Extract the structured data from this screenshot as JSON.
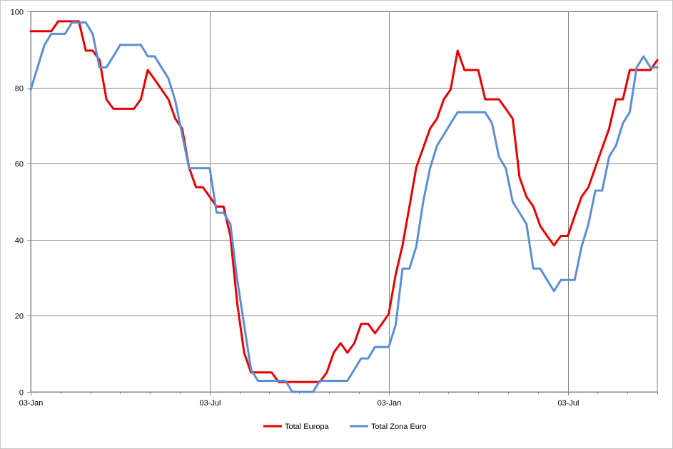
{
  "chart_data": {
    "type": "line",
    "title": "",
    "xlabel": "",
    "ylabel": "",
    "ylim": [
      0,
      100
    ],
    "yticks": [
      0,
      20,
      40,
      60,
      80,
      100
    ],
    "x_tick_labels": [
      "03-Jan",
      "03-Jul",
      "03-Jan",
      "03-Jul"
    ],
    "x_ticks_week": [
      0,
      26,
      52,
      78
    ],
    "x_range_weeks": [
      0,
      91
    ],
    "grid": true,
    "legend_position": "bottom",
    "x_unit": "weeks since 03-Jan",
    "series": [
      {
        "name": "Total Europa",
        "color": "#e40000",
        "points": [
          [
            0,
            94.8
          ],
          [
            1,
            94.8
          ],
          [
            2,
            94.8
          ],
          [
            3,
            94.8
          ],
          [
            4,
            97.4
          ],
          [
            5,
            97.4
          ],
          [
            6,
            97.4
          ],
          [
            7,
            97.4
          ],
          [
            8,
            89.7
          ],
          [
            9,
            89.7
          ],
          [
            10,
            87.2
          ],
          [
            11,
            76.9
          ],
          [
            12,
            74.4
          ],
          [
            13,
            74.4
          ],
          [
            14,
            74.4
          ],
          [
            15,
            74.4
          ],
          [
            16,
            76.9
          ],
          [
            17,
            84.6
          ],
          [
            18,
            82.1
          ],
          [
            19,
            79.5
          ],
          [
            20,
            76.9
          ],
          [
            21,
            71.8
          ],
          [
            22,
            69.2
          ],
          [
            23,
            59.0
          ],
          [
            24,
            53.8
          ],
          [
            25,
            53.8
          ],
          [
            26,
            51.3
          ],
          [
            27,
            48.7
          ],
          [
            28,
            48.7
          ],
          [
            29,
            41.0
          ],
          [
            30,
            23.1
          ],
          [
            31,
            10.3
          ],
          [
            32,
            5.1
          ],
          [
            33,
            5.1
          ],
          [
            34,
            5.1
          ],
          [
            35,
            5.1
          ],
          [
            36,
            2.6
          ],
          [
            37,
            2.6
          ],
          [
            38,
            2.6
          ],
          [
            39,
            2.6
          ],
          [
            40,
            2.6
          ],
          [
            41,
            2.6
          ],
          [
            42,
            2.6
          ],
          [
            43,
            5.1
          ],
          [
            44,
            10.3
          ],
          [
            45,
            12.8
          ],
          [
            46,
            10.3
          ],
          [
            47,
            12.8
          ],
          [
            48,
            17.9
          ],
          [
            49,
            17.9
          ],
          [
            50,
            15.4
          ],
          [
            51,
            17.9
          ],
          [
            52,
            20.5
          ],
          [
            53,
            30.8
          ],
          [
            54,
            38.5
          ],
          [
            55,
            48.7
          ],
          [
            56,
            59.0
          ],
          [
            57,
            64.1
          ],
          [
            58,
            69.2
          ],
          [
            59,
            71.8
          ],
          [
            60,
            76.9
          ],
          [
            61,
            79.5
          ],
          [
            62,
            89.7
          ],
          [
            63,
            84.6
          ],
          [
            64,
            84.6
          ],
          [
            65,
            84.6
          ],
          [
            66,
            76.9
          ],
          [
            67,
            76.9
          ],
          [
            68,
            76.9
          ],
          [
            69,
            74.4
          ],
          [
            70,
            71.8
          ],
          [
            71,
            56.4
          ],
          [
            72,
            51.3
          ],
          [
            73,
            48.7
          ],
          [
            74,
            43.6
          ],
          [
            75,
            41.0
          ],
          [
            76,
            38.5
          ],
          [
            77,
            41.0
          ],
          [
            78,
            41.0
          ],
          [
            79,
            46.2
          ],
          [
            80,
            51.3
          ],
          [
            81,
            53.8
          ],
          [
            82,
            59.0
          ],
          [
            83,
            64.1
          ],
          [
            84,
            69.2
          ],
          [
            85,
            76.9
          ],
          [
            86,
            76.9
          ],
          [
            87,
            84.6
          ],
          [
            88,
            84.6
          ],
          [
            89,
            84.6
          ],
          [
            90,
            84.6
          ],
          [
            91,
            87.2
          ]
        ]
      },
      {
        "name": "Total Zona Euro",
        "color": "#5b8fd2",
        "points": [
          [
            0,
            79.4
          ],
          [
            1,
            85.3
          ],
          [
            2,
            91.2
          ],
          [
            3,
            94.1
          ],
          [
            4,
            94.1
          ],
          [
            5,
            94.1
          ],
          [
            6,
            97.1
          ],
          [
            7,
            97.1
          ],
          [
            8,
            97.1
          ],
          [
            9,
            94.1
          ],
          [
            10,
            85.3
          ],
          [
            11,
            85.3
          ],
          [
            12,
            88.2
          ],
          [
            13,
            91.2
          ],
          [
            14,
            91.2
          ],
          [
            15,
            91.2
          ],
          [
            16,
            91.2
          ],
          [
            17,
            88.2
          ],
          [
            18,
            88.2
          ],
          [
            19,
            85.3
          ],
          [
            20,
            82.4
          ],
          [
            21,
            76.5
          ],
          [
            22,
            67.6
          ],
          [
            23,
            58.8
          ],
          [
            24,
            58.8
          ],
          [
            25,
            58.8
          ],
          [
            26,
            58.8
          ],
          [
            27,
            47.1
          ],
          [
            28,
            47.1
          ],
          [
            29,
            44.1
          ],
          [
            30,
            29.4
          ],
          [
            31,
            17.6
          ],
          [
            32,
            5.9
          ],
          [
            33,
            2.9
          ],
          [
            34,
            2.9
          ],
          [
            35,
            2.9
          ],
          [
            36,
            2.9
          ],
          [
            37,
            2.9
          ],
          [
            38,
            0.0
          ],
          [
            39,
            0.0
          ],
          [
            40,
            0.0
          ],
          [
            41,
            0.0
          ],
          [
            42,
            2.9
          ],
          [
            43,
            2.9
          ],
          [
            44,
            2.9
          ],
          [
            45,
            2.9
          ],
          [
            46,
            2.9
          ],
          [
            47,
            5.9
          ],
          [
            48,
            8.8
          ],
          [
            49,
            8.8
          ],
          [
            50,
            11.8
          ],
          [
            51,
            11.8
          ],
          [
            52,
            11.8
          ],
          [
            53,
            17.6
          ],
          [
            54,
            32.4
          ],
          [
            55,
            32.4
          ],
          [
            56,
            38.2
          ],
          [
            57,
            50.0
          ],
          [
            58,
            58.8
          ],
          [
            59,
            64.7
          ],
          [
            60,
            67.6
          ],
          [
            61,
            70.6
          ],
          [
            62,
            73.5
          ],
          [
            63,
            73.5
          ],
          [
            64,
            73.5
          ],
          [
            65,
            73.5
          ],
          [
            66,
            73.5
          ],
          [
            67,
            70.6
          ],
          [
            68,
            61.8
          ],
          [
            69,
            58.8
          ],
          [
            70,
            50.0
          ],
          [
            71,
            47.1
          ],
          [
            72,
            44.1
          ],
          [
            73,
            32.4
          ],
          [
            74,
            32.4
          ],
          [
            75,
            29.4
          ],
          [
            76,
            26.5
          ],
          [
            77,
            29.4
          ],
          [
            78,
            29.4
          ],
          [
            79,
            29.4
          ],
          [
            80,
            38.2
          ],
          [
            81,
            44.1
          ],
          [
            82,
            52.9
          ],
          [
            83,
            52.9
          ],
          [
            84,
            61.8
          ],
          [
            85,
            64.7
          ],
          [
            86,
            70.6
          ],
          [
            87,
            73.5
          ],
          [
            88,
            85.3
          ],
          [
            89,
            88.2
          ],
          [
            90,
            85.3
          ],
          [
            91,
            85.3
          ]
        ]
      }
    ]
  }
}
